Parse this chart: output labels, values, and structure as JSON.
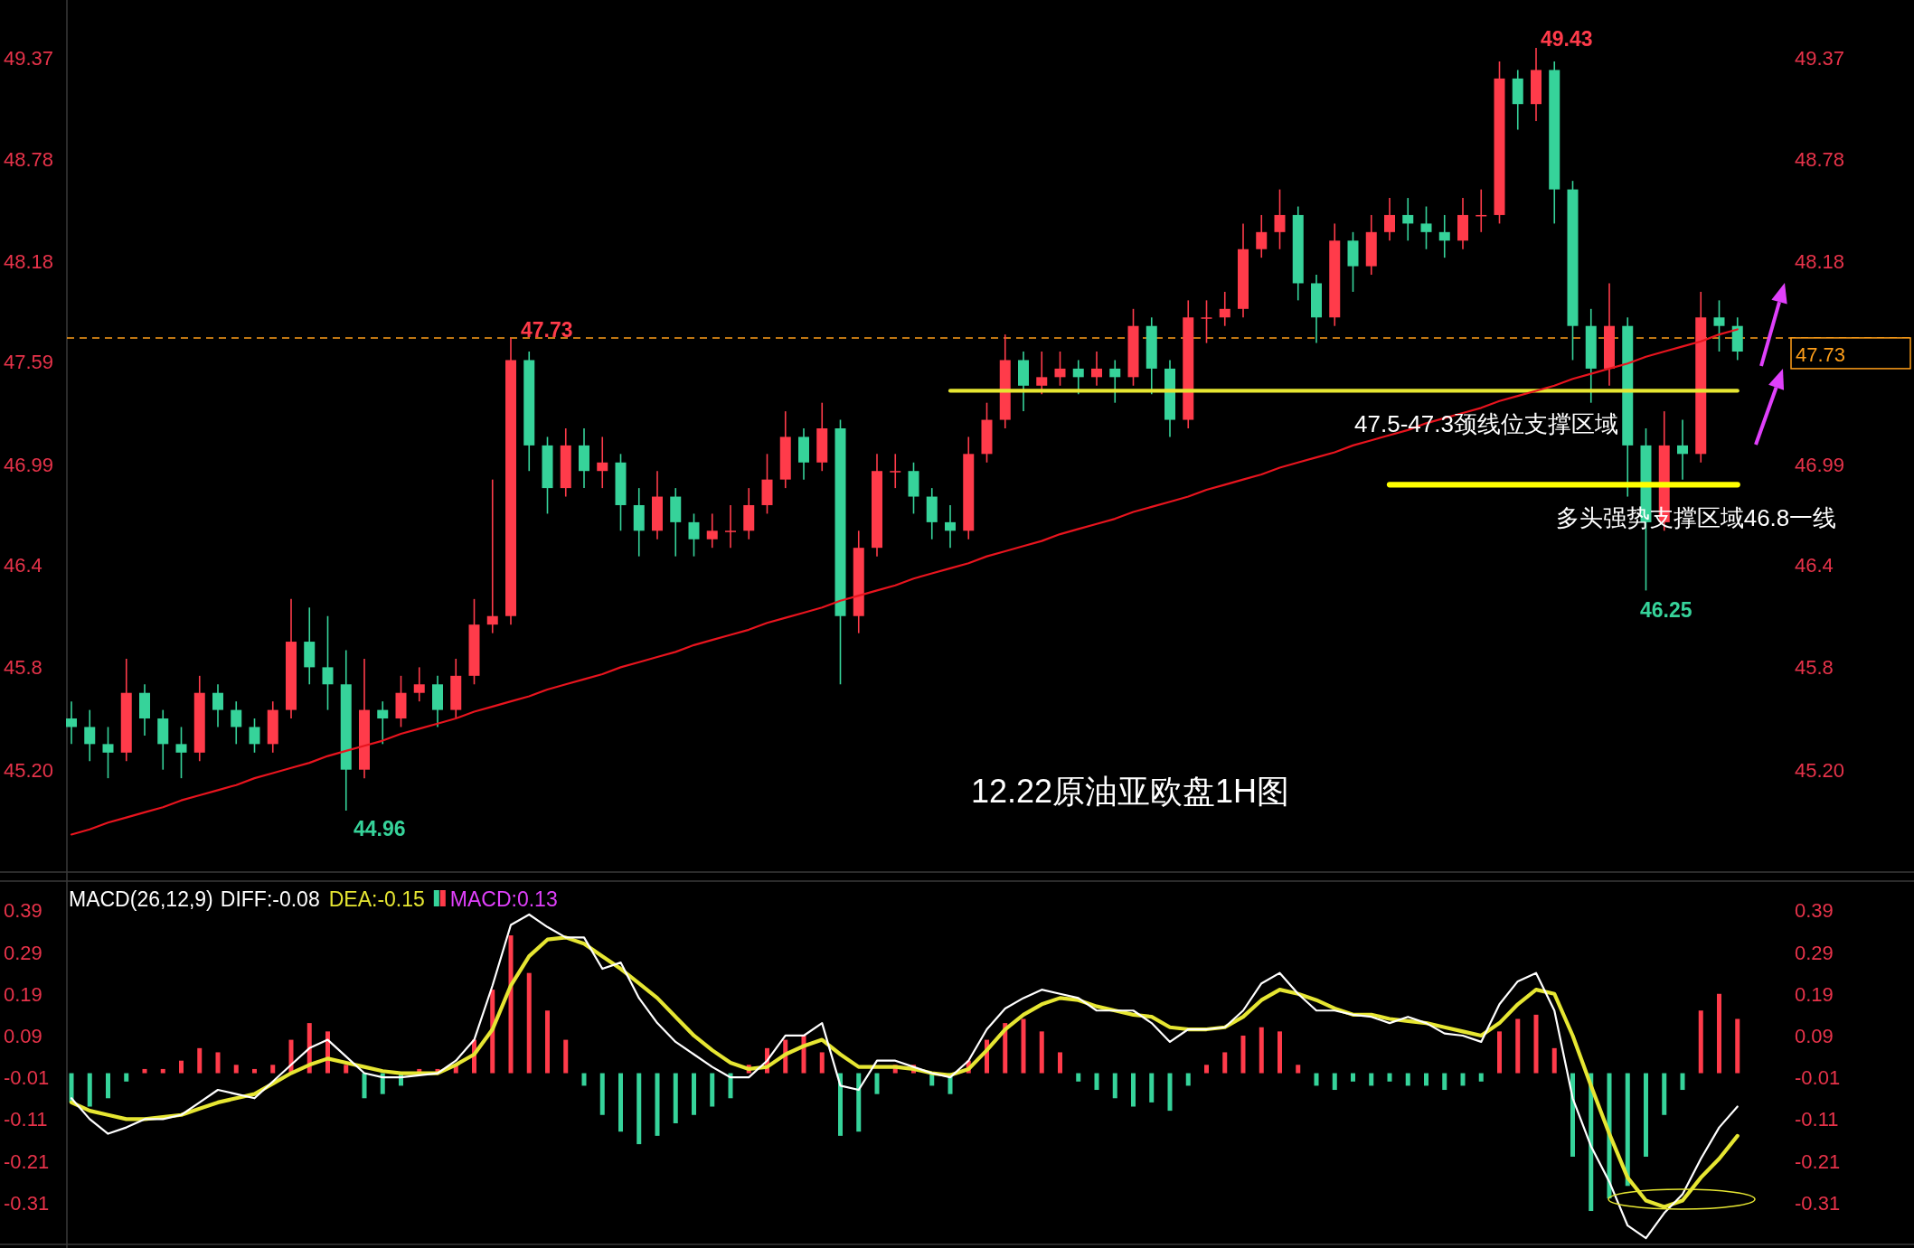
{
  "chart_data": [
    {
      "type": "candlestick",
      "title": "12.22原油亚欧盘1H图",
      "categories": [
        null,
        null,
        null,
        null,
        null,
        null,
        null,
        null,
        null,
        null,
        null,
        null,
        null,
        null,
        null,
        null,
        null,
        null,
        null,
        null,
        null,
        null,
        null,
        null,
        null,
        null,
        null,
        null,
        null,
        null,
        null,
        null,
        null,
        null,
        null,
        null,
        null,
        null,
        null,
        null,
        null,
        null,
        null,
        null,
        null,
        null,
        null,
        null,
        null,
        null,
        null,
        null,
        null,
        null,
        null,
        null,
        null,
        null,
        null,
        null,
        null,
        null,
        null,
        null,
        null,
        null,
        null,
        null,
        null,
        null,
        null,
        null,
        null,
        null,
        null,
        null,
        null,
        null,
        null,
        null,
        null,
        null,
        null,
        null,
        null,
        null,
        null,
        null,
        null,
        null,
        null,
        null
      ],
      "ohlc": [
        [
          45.5,
          45.6,
          45.35,
          45.45
        ],
        [
          45.45,
          45.55,
          45.25,
          45.35
        ],
        [
          45.35,
          45.45,
          45.15,
          45.3
        ],
        [
          45.3,
          45.85,
          45.25,
          45.65
        ],
        [
          45.65,
          45.7,
          45.4,
          45.5
        ],
        [
          45.5,
          45.55,
          45.2,
          45.35
        ],
        [
          45.35,
          45.45,
          45.15,
          45.3
        ],
        [
          45.3,
          45.75,
          45.25,
          45.65
        ],
        [
          45.65,
          45.7,
          45.45,
          45.55
        ],
        [
          45.55,
          45.6,
          45.35,
          45.45
        ],
        [
          45.45,
          45.5,
          45.3,
          45.35
        ],
        [
          45.35,
          45.6,
          45.3,
          45.55
        ],
        [
          45.55,
          46.2,
          45.5,
          45.95
        ],
        [
          45.95,
          46.15,
          45.7,
          45.8
        ],
        [
          45.8,
          46.1,
          45.55,
          45.7
        ],
        [
          45.7,
          45.9,
          44.96,
          45.2
        ],
        [
          45.2,
          45.85,
          45.15,
          45.55
        ],
        [
          45.55,
          45.6,
          45.35,
          45.5
        ],
        [
          45.5,
          45.75,
          45.45,
          45.65
        ],
        [
          45.65,
          45.8,
          45.6,
          45.7
        ],
        [
          45.7,
          45.75,
          45.45,
          45.55
        ],
        [
          45.55,
          45.85,
          45.5,
          45.75
        ],
        [
          45.75,
          46.2,
          45.7,
          46.05
        ],
        [
          46.05,
          46.9,
          46.0,
          46.1
        ],
        [
          46.1,
          47.73,
          46.05,
          47.6
        ],
        [
          47.6,
          47.65,
          46.95,
          47.1
        ],
        [
          47.1,
          47.15,
          46.7,
          46.85
        ],
        [
          46.85,
          47.2,
          46.8,
          47.1
        ],
        [
          47.1,
          47.2,
          46.85,
          46.95
        ],
        [
          46.95,
          47.15,
          46.85,
          47.0
        ],
        [
          47.0,
          47.05,
          46.6,
          46.75
        ],
        [
          46.75,
          46.85,
          46.45,
          46.6
        ],
        [
          46.6,
          46.95,
          46.55,
          46.8
        ],
        [
          46.8,
          46.85,
          46.45,
          46.65
        ],
        [
          46.65,
          46.7,
          46.45,
          46.55
        ],
        [
          46.55,
          46.7,
          46.5,
          46.6
        ],
        [
          46.6,
          46.75,
          46.5,
          46.6
        ],
        [
          46.6,
          46.85,
          46.55,
          46.75
        ],
        [
          46.75,
          47.05,
          46.7,
          46.9
        ],
        [
          46.9,
          47.3,
          46.85,
          47.15
        ],
        [
          47.15,
          47.2,
          46.9,
          47.0
        ],
        [
          47.0,
          47.35,
          46.95,
          47.2
        ],
        [
          47.2,
          47.25,
          45.7,
          46.1
        ],
        [
          46.1,
          46.6,
          46.0,
          46.5
        ],
        [
          46.5,
          47.05,
          46.45,
          46.95
        ],
        [
          46.95,
          47.05,
          46.85,
          46.95
        ],
        [
          46.95,
          47.0,
          46.7,
          46.8
        ],
        [
          46.8,
          46.85,
          46.55,
          46.65
        ],
        [
          46.65,
          46.75,
          46.5,
          46.6
        ],
        [
          46.6,
          47.15,
          46.55,
          47.05
        ],
        [
          47.05,
          47.35,
          47.0,
          47.25
        ],
        [
          47.25,
          47.75,
          47.2,
          47.6
        ],
        [
          47.6,
          47.65,
          47.3,
          47.45
        ],
        [
          47.45,
          47.65,
          47.4,
          47.5
        ],
        [
          47.5,
          47.65,
          47.45,
          47.55
        ],
        [
          47.55,
          47.6,
          47.4,
          47.5
        ],
        [
          47.5,
          47.65,
          47.45,
          47.55
        ],
        [
          47.55,
          47.6,
          47.35,
          47.5
        ],
        [
          47.5,
          47.9,
          47.45,
          47.8
        ],
        [
          47.8,
          47.85,
          47.4,
          47.55
        ],
        [
          47.55,
          47.6,
          47.15,
          47.25
        ],
        [
          47.25,
          47.95,
          47.2,
          47.85
        ],
        [
          47.85,
          47.95,
          47.7,
          47.85
        ],
        [
          47.85,
          48.0,
          47.8,
          47.9
        ],
        [
          47.9,
          48.4,
          47.85,
          48.25
        ],
        [
          48.25,
          48.45,
          48.2,
          48.35
        ],
        [
          48.35,
          48.6,
          48.25,
          48.45
        ],
        [
          48.45,
          48.5,
          47.95,
          48.05
        ],
        [
          48.05,
          48.1,
          47.7,
          47.85
        ],
        [
          47.85,
          48.4,
          47.8,
          48.3
        ],
        [
          48.3,
          48.35,
          48.0,
          48.15
        ],
        [
          48.15,
          48.45,
          48.1,
          48.35
        ],
        [
          48.35,
          48.55,
          48.3,
          48.45
        ],
        [
          48.45,
          48.55,
          48.3,
          48.4
        ],
        [
          48.4,
          48.5,
          48.25,
          48.35
        ],
        [
          48.35,
          48.45,
          48.2,
          48.3
        ],
        [
          48.3,
          48.55,
          48.25,
          48.45
        ],
        [
          48.45,
          48.6,
          48.35,
          48.45
        ],
        [
          48.45,
          49.35,
          48.4,
          49.25
        ],
        [
          49.25,
          49.3,
          48.95,
          49.1
        ],
        [
          49.1,
          49.43,
          49.0,
          49.3
        ],
        [
          49.3,
          49.35,
          48.4,
          48.6
        ],
        [
          48.6,
          48.65,
          47.6,
          47.8
        ],
        [
          47.8,
          47.9,
          47.35,
          47.55
        ],
        [
          47.55,
          48.05,
          47.45,
          47.8
        ],
        [
          47.8,
          47.85,
          46.8,
          47.1
        ],
        [
          47.1,
          47.2,
          46.25,
          46.65
        ],
        [
          46.65,
          47.3,
          46.6,
          47.1
        ],
        [
          47.1,
          47.25,
          46.9,
          47.05
        ],
        [
          47.05,
          48.0,
          47.0,
          47.85
        ],
        [
          47.85,
          47.95,
          47.65,
          47.8
        ],
        [
          47.8,
          47.85,
          47.6,
          47.65
        ]
      ],
      "series": [
        {
          "type": "line",
          "color": "#e8141e",
          "values": [
            44.82,
            44.85,
            44.89,
            44.92,
            44.95,
            44.98,
            45.02,
            45.05,
            45.08,
            45.11,
            45.15,
            45.18,
            45.21,
            45.24,
            45.28,
            45.31,
            45.34,
            45.37,
            45.41,
            45.44,
            45.47,
            45.5,
            45.54,
            45.57,
            45.6,
            45.63,
            45.67,
            45.7,
            45.73,
            45.76,
            45.8,
            45.83,
            45.86,
            45.89,
            45.93,
            45.96,
            45.99,
            46.02,
            46.06,
            46.09,
            46.12,
            46.15,
            46.19,
            46.22,
            46.25,
            46.28,
            46.32,
            46.35,
            46.38,
            46.41,
            46.45,
            46.48,
            46.51,
            46.54,
            46.58,
            46.61,
            46.64,
            46.67,
            46.71,
            46.74,
            46.77,
            46.8,
            46.84,
            46.87,
            46.9,
            46.93,
            46.97,
            47.0,
            47.03,
            47.06,
            47.1,
            47.13,
            47.16,
            47.19,
            47.23,
            47.26,
            47.29,
            47.32,
            47.36,
            47.39,
            47.42,
            47.45,
            47.49,
            47.52,
            47.55,
            47.58,
            47.62,
            47.65,
            47.68,
            47.71,
            47.75,
            47.78
          ]
        },
        {
          "type": "line",
          "color": "#e6e632",
          "values": [
            null,
            null,
            null,
            null,
            null,
            null,
            null,
            null,
            null,
            null,
            null,
            null,
            null,
            null,
            null,
            null,
            null,
            null,
            null,
            null,
            null,
            null,
            null,
            null,
            null,
            null,
            null,
            null,
            null,
            null,
            null,
            null,
            null,
            null,
            null,
            null,
            null,
            null,
            null,
            null,
            null,
            null,
            null,
            null,
            null,
            null,
            null,
            null,
            47.42,
            47.42,
            47.42,
            47.42,
            47.42,
            47.42,
            47.42,
            47.42,
            47.42,
            47.42,
            47.42,
            47.42,
            47.42,
            47.42,
            47.42,
            47.42,
            47.42,
            47.42,
            47.42,
            47.42,
            47.42,
            47.42,
            47.42,
            47.42,
            47.42,
            47.42,
            47.42,
            47.42,
            47.42,
            47.42,
            47.42,
            47.42,
            47.42,
            47.42,
            47.42,
            47.42,
            47.42,
            47.42,
            47.42,
            47.42,
            47.42,
            47.42,
            47.42,
            47.42
          ]
        },
        {
          "type": "line",
          "color": "#ffff00",
          "values": [
            null,
            null,
            null,
            null,
            null,
            null,
            null,
            null,
            null,
            null,
            null,
            null,
            null,
            null,
            null,
            null,
            null,
            null,
            null,
            null,
            null,
            null,
            null,
            null,
            null,
            null,
            null,
            null,
            null,
            null,
            null,
            null,
            null,
            null,
            null,
            null,
            null,
            null,
            null,
            null,
            null,
            null,
            null,
            null,
            null,
            null,
            null,
            null,
            null,
            null,
            null,
            null,
            null,
            null,
            null,
            null,
            null,
            null,
            null,
            null,
            null,
            null,
            null,
            null,
            null,
            null,
            null,
            null,
            null,
            null,
            null,
            null,
            46.87,
            46.87,
            46.87,
            46.87,
            46.87,
            46.87,
            46.87,
            46.87,
            46.87,
            46.87,
            46.87,
            46.87,
            46.87,
            46.87,
            46.87,
            46.87,
            46.87,
            46.87,
            46.87,
            46.87
          ]
        }
      ],
      "ref_lines": [
        {
          "axis": "y2",
          "value": 47.73,
          "label": "47.73",
          "color": "#ff9f1a",
          "line_style": "dashed"
        }
      ],
      "annotations": [
        "49.43",
        "47.73",
        "46.25",
        "44.96",
        "47.5-47.3颈线位支撑区域",
        "多头强势支撑区域46.8一线"
      ],
      "ylim": [
        44.6,
        49.71
      ],
      "yticks": [
        {
          "value": 45.2,
          "label": "45.20"
        },
        45.8,
        46.4,
        46.99,
        47.59,
        48.18,
        48.78,
        49.37
      ],
      "y2lim": [
        44.6,
        49.71
      ],
      "y2ticks": [
        {
          "value": 45.2,
          "label": "45.20"
        },
        45.8,
        46.4,
        46.99,
        48.18,
        48.78,
        49.37
      ]
    },
    {
      "type": "bar",
      "title": "MACD(26,12,9)",
      "legend": "top left",
      "categories": [
        null,
        null,
        null,
        null,
        null,
        null,
        null,
        null,
        null,
        null,
        null,
        null,
        null,
        null,
        null,
        null,
        null,
        null,
        null,
        null,
        null,
        null,
        null,
        null,
        null,
        null,
        null,
        null,
        null,
        null,
        null,
        null,
        null,
        null,
        null,
        null,
        null,
        null,
        null,
        null,
        null,
        null,
        null,
        null,
        null,
        null,
        null,
        null,
        null,
        null,
        null,
        null,
        null,
        null,
        null,
        null,
        null,
        null,
        null,
        null,
        null,
        null,
        null,
        null,
        null,
        null,
        null,
        null,
        null,
        null,
        null,
        null,
        null,
        null,
        null,
        null,
        null,
        null,
        null,
        null,
        null,
        null,
        null,
        null,
        null,
        null,
        null,
        null,
        null,
        null,
        null,
        null
      ],
      "series": [
        {
          "name": "DIFF:-0.08",
          "type": "line",
          "color": "#ffffff",
          "values": [
            -0.06,
            -0.11,
            -0.145,
            -0.13,
            -0.11,
            -0.11,
            -0.1,
            -0.07,
            -0.04,
            -0.05,
            -0.06,
            -0.02,
            0.02,
            0.06,
            0.08,
            0.04,
            0.0,
            -0.01,
            -0.01,
            -0.005,
            0.0,
            0.03,
            0.08,
            0.21,
            0.355,
            0.38,
            0.35,
            0.325,
            0.325,
            0.25,
            0.265,
            0.18,
            0.12,
            0.075,
            0.045,
            0.015,
            -0.01,
            -0.01,
            0.03,
            0.09,
            0.09,
            0.12,
            -0.03,
            -0.04,
            0.03,
            0.03,
            0.015,
            0.0,
            -0.01,
            0.03,
            0.105,
            0.155,
            0.18,
            0.2,
            0.19,
            0.18,
            0.15,
            0.15,
            0.15,
            0.12,
            0.075,
            0.105,
            0.105,
            0.11,
            0.15,
            0.215,
            0.24,
            0.19,
            0.15,
            0.15,
            0.14,
            0.135,
            0.12,
            0.135,
            0.12,
            0.095,
            0.09,
            0.075,
            0.165,
            0.22,
            0.24,
            0.15,
            -0.06,
            -0.175,
            -0.26,
            -0.365,
            -0.395,
            -0.335,
            -0.29,
            -0.205,
            -0.13,
            -0.08
          ]
        },
        {
          "name": "DEA:-0.15",
          "type": "line",
          "color": "#e6e632",
          "values": [
            -0.07,
            -0.09,
            -0.1,
            -0.11,
            -0.11,
            -0.105,
            -0.1,
            -0.085,
            -0.07,
            -0.06,
            -0.05,
            -0.025,
            0.0,
            0.02,
            0.035,
            0.025,
            0.015,
            0.005,
            0.0,
            0.0,
            0.0,
            0.02,
            0.045,
            0.105,
            0.21,
            0.28,
            0.32,
            0.325,
            0.31,
            0.28,
            0.25,
            0.215,
            0.18,
            0.135,
            0.09,
            0.055,
            0.025,
            0.01,
            0.015,
            0.045,
            0.065,
            0.08,
            0.045,
            0.015,
            0.015,
            0.015,
            0.01,
            0.0,
            -0.005,
            0.01,
            0.055,
            0.105,
            0.14,
            0.165,
            0.18,
            0.175,
            0.16,
            0.15,
            0.14,
            0.135,
            0.11,
            0.105,
            0.105,
            0.11,
            0.135,
            0.175,
            0.2,
            0.19,
            0.175,
            0.155,
            0.14,
            0.14,
            0.13,
            0.125,
            0.12,
            0.11,
            0.1,
            0.09,
            0.12,
            0.165,
            0.2,
            0.19,
            0.09,
            -0.03,
            -0.145,
            -0.25,
            -0.305,
            -0.32,
            -0.305,
            -0.25,
            -0.205,
            -0.15
          ]
        },
        {
          "name": "MACD:0.13",
          "type": "bar",
          "color": "#e040fb",
          "values": [
            -0.07,
            -0.08,
            -0.06,
            -0.02,
            0.01,
            0.01,
            0.03,
            0.06,
            0.05,
            0.02,
            0.01,
            0.02,
            0.08,
            0.12,
            0.1,
            0.02,
            -0.06,
            -0.05,
            -0.03,
            0.01,
            0.01,
            0.02,
            0.08,
            0.2,
            0.33,
            0.24,
            0.15,
            0.08,
            -0.03,
            -0.1,
            -0.14,
            -0.17,
            -0.15,
            -0.12,
            -0.1,
            -0.08,
            -0.06,
            0.02,
            0.06,
            0.08,
            0.09,
            0.05,
            -0.15,
            -0.14,
            -0.05,
            0.02,
            0.02,
            -0.03,
            -0.05,
            0.03,
            0.08,
            0.12,
            0.13,
            0.1,
            0.05,
            -0.02,
            -0.04,
            -0.06,
            -0.08,
            -0.07,
            -0.09,
            -0.03,
            0.02,
            0.05,
            0.09,
            0.11,
            0.1,
            0.02,
            -0.03,
            -0.04,
            -0.02,
            -0.03,
            -0.02,
            -0.03,
            -0.03,
            -0.04,
            -0.03,
            -0.02,
            0.1,
            0.13,
            0.14,
            0.06,
            -0.2,
            -0.33,
            -0.3,
            -0.27,
            -0.2,
            -0.1,
            -0.04,
            0.15,
            0.19,
            0.13
          ],
          "colors": [
            "#36d39a",
            "#36d39a",
            "#36d39a",
            "#36d39a",
            "#ff3b4a",
            "#ff3b4a",
            "#ff3b4a",
            "#ff3b4a",
            "#ff3b4a",
            "#ff3b4a",
            "#ff3b4a",
            "#ff3b4a",
            "#ff3b4a",
            "#ff3b4a",
            "#ff3b4a",
            "#ff3b4a",
            "#36d39a",
            "#36d39a",
            "#36d39a",
            "#ff3b4a",
            "#ff3b4a",
            "#ff3b4a",
            "#ff3b4a",
            "#ff3b4a",
            "#ff3b4a",
            "#ff3b4a",
            "#ff3b4a",
            "#ff3b4a",
            "#36d39a",
            "#36d39a",
            "#36d39a",
            "#36d39a",
            "#36d39a",
            "#36d39a",
            "#36d39a",
            "#36d39a",
            "#36d39a",
            "#ff3b4a",
            "#ff3b4a",
            "#ff3b4a",
            "#ff3b4a",
            "#ff3b4a",
            "#36d39a",
            "#36d39a",
            "#36d39a",
            "#ff3b4a",
            "#ff3b4a",
            "#36d39a",
            "#36d39a",
            "#ff3b4a",
            "#ff3b4a",
            "#ff3b4a",
            "#ff3b4a",
            "#ff3b4a",
            "#ff3b4a",
            "#36d39a",
            "#36d39a",
            "#36d39a",
            "#36d39a",
            "#36d39a",
            "#36d39a",
            "#36d39a",
            "#ff3b4a",
            "#ff3b4a",
            "#ff3b4a",
            "#ff3b4a",
            "#ff3b4a",
            "#ff3b4a",
            "#36d39a",
            "#36d39a",
            "#36d39a",
            "#36d39a",
            "#36d39a",
            "#36d39a",
            "#36d39a",
            "#36d39a",
            "#36d39a",
            "#36d39a",
            "#ff3b4a",
            "#ff3b4a",
            "#ff3b4a",
            "#ff3b4a",
            "#36d39a",
            "#36d39a",
            "#36d39a",
            "#36d39a",
            "#36d39a",
            "#36d39a",
            "#36d39a",
            "#ff3b4a",
            "#ff3b4a",
            "#ff3b4a"
          ]
        }
      ],
      "ylim": [
        -0.41,
        0.46
      ],
      "yticks": [
        -0.31,
        -0.21,
        -0.11,
        -0.01,
        0.09,
        0.19,
        0.29,
        0.39
      ],
      "y2lim": [
        -0.41,
        0.46
      ],
      "y2ticks": [
        -0.31,
        -0.21,
        -0.11,
        -0.01,
        0.09,
        0.19,
        0.29,
        0.39
      ]
    }
  ]
}
